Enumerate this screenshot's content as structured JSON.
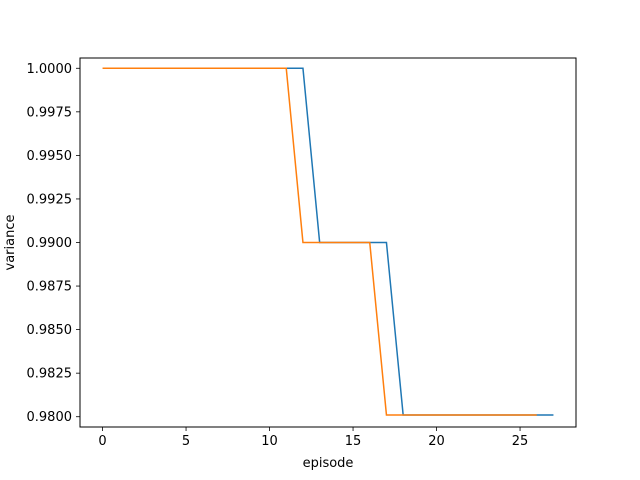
{
  "chart_data": {
    "type": "line",
    "title": "",
    "xlabel": "episode",
    "ylabel": "variance",
    "xlim": [
      -1.35,
      28.35
    ],
    "ylim": [
      0.97941,
      1.00059
    ],
    "x_ticks": [
      0,
      5,
      10,
      15,
      20,
      25
    ],
    "x_tick_labels": [
      "0",
      "5",
      "10",
      "15",
      "20",
      "25"
    ],
    "y_ticks": [
      0.98,
      0.9825,
      0.985,
      0.9875,
      0.99,
      0.9925,
      0.995,
      0.9975,
      1.0
    ],
    "y_tick_labels": [
      "0.9800",
      "0.9825",
      "0.9850",
      "0.9875",
      "0.9900",
      "0.9925",
      "0.9950",
      "0.9975",
      "1.0000"
    ],
    "grid": false,
    "legend": "none",
    "series": [
      {
        "color": "#1f77b4",
        "x": [
          1,
          2,
          3,
          4,
          5,
          6,
          7,
          8,
          9,
          10,
          11,
          12,
          13,
          14,
          15,
          16,
          17,
          18,
          19,
          20,
          21,
          22,
          23,
          24,
          25,
          26,
          27
        ],
        "y": [
          1.0,
          1.0,
          1.0,
          1.0,
          1.0,
          1.0,
          1.0,
          1.0,
          1.0,
          1.0,
          1.0,
          1.0,
          0.99,
          0.99,
          0.99,
          0.99,
          0.99,
          0.9801,
          0.9801,
          0.9801,
          0.9801,
          0.9801,
          0.9801,
          0.9801,
          0.9801,
          0.9801,
          0.9801
        ]
      },
      {
        "color": "#ff7f0e",
        "x": [
          0,
          1,
          2,
          3,
          4,
          5,
          6,
          7,
          8,
          9,
          10,
          11,
          12,
          13,
          14,
          15,
          16,
          17,
          18,
          19,
          20,
          21,
          22,
          23,
          24,
          25,
          26
        ],
        "y": [
          1.0,
          1.0,
          1.0,
          1.0,
          1.0,
          1.0,
          1.0,
          1.0,
          1.0,
          1.0,
          1.0,
          1.0,
          0.99,
          0.99,
          0.99,
          0.99,
          0.99,
          0.9801,
          0.9801,
          0.9801,
          0.9801,
          0.9801,
          0.9801,
          0.9801,
          0.9801,
          0.9801,
          0.9801
        ]
      }
    ]
  }
}
